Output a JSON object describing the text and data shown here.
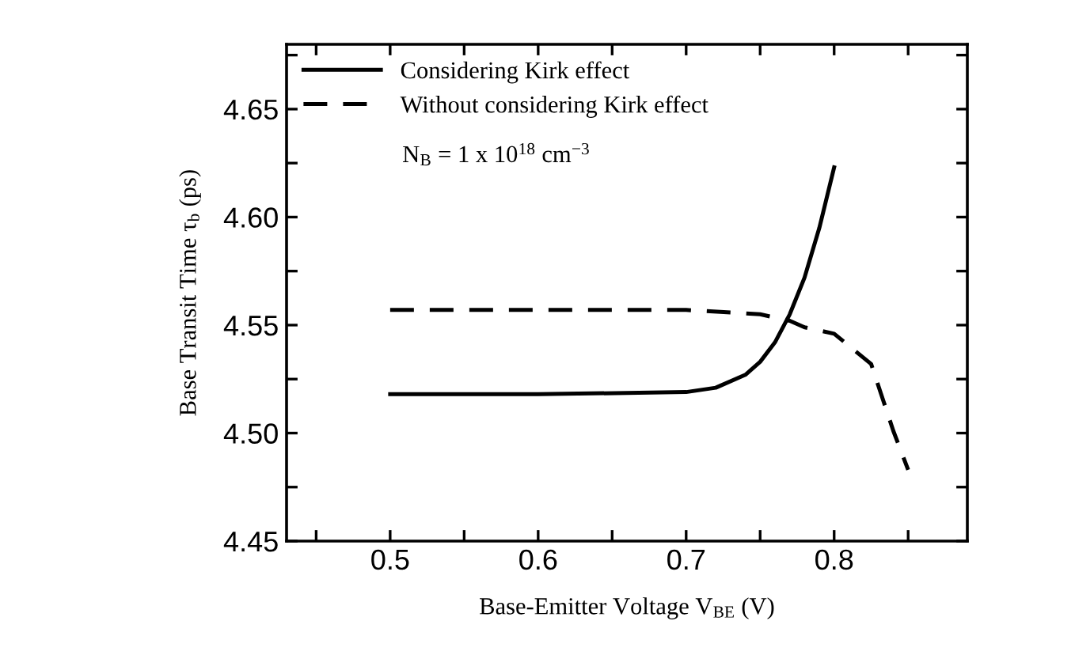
{
  "chart_data": {
    "type": "line",
    "xlabel": "Base-Emitter Voltage V$_{BE}$ (V)",
    "ylabel": "Base Transit Time τ$_{b}$ (ps)",
    "xlim": [
      0.43,
      0.89
    ],
    "ylim": [
      4.45,
      4.68
    ],
    "xticks": [
      {
        "value": 0.45,
        "label": null
      },
      0.5,
      {
        "value": 0.55,
        "label": null
      },
      0.6,
      {
        "value": 0.65,
        "label": null
      },
      0.7,
      {
        "value": 0.75,
        "label": null
      },
      0.8,
      {
        "value": 0.85,
        "label": null
      }
    ],
    "yticks": [
      4.45,
      {
        "value": 4.475,
        "label": null
      },
      {
        "value": 4.5,
        "label": "4.50"
      },
      {
        "value": 4.525,
        "label": null
      },
      4.55,
      {
        "value": 4.575,
        "label": null
      },
      {
        "value": 4.6,
        "label": "4.60"
      },
      {
        "value": 4.625,
        "label": null
      },
      4.65,
      {
        "value": 4.675,
        "label": null
      }
    ],
    "legend": "top left",
    "grid": false,
    "series": [
      {
        "name": "Considering Kirk effect",
        "color": "#000000",
        "line_style": "solid",
        "x": [
          0.5,
          0.6,
          0.7,
          0.72,
          0.74,
          0.75,
          0.76,
          0.77,
          0.78,
          0.79,
          0.8
        ],
        "values": [
          4.518,
          4.518,
          4.519,
          4.521,
          4.527,
          4.533,
          4.542,
          4.555,
          4.572,
          4.595,
          4.623
        ]
      },
      {
        "name": "Without considering Kirk effect",
        "color": "#000000",
        "line_style": "dashed",
        "x": [
          0.5,
          0.6,
          0.7,
          0.75,
          0.77,
          0.78,
          0.8,
          0.825,
          0.84,
          0.85
        ],
        "values": [
          4.557,
          4.557,
          4.557,
          4.555,
          4.552,
          4.549,
          4.546,
          4.532,
          4.501,
          4.483
        ]
      }
    ],
    "annotations": [
      "N$_{B}$ = 1 x 10$^{18}$ cm$^{−3}$"
    ]
  }
}
